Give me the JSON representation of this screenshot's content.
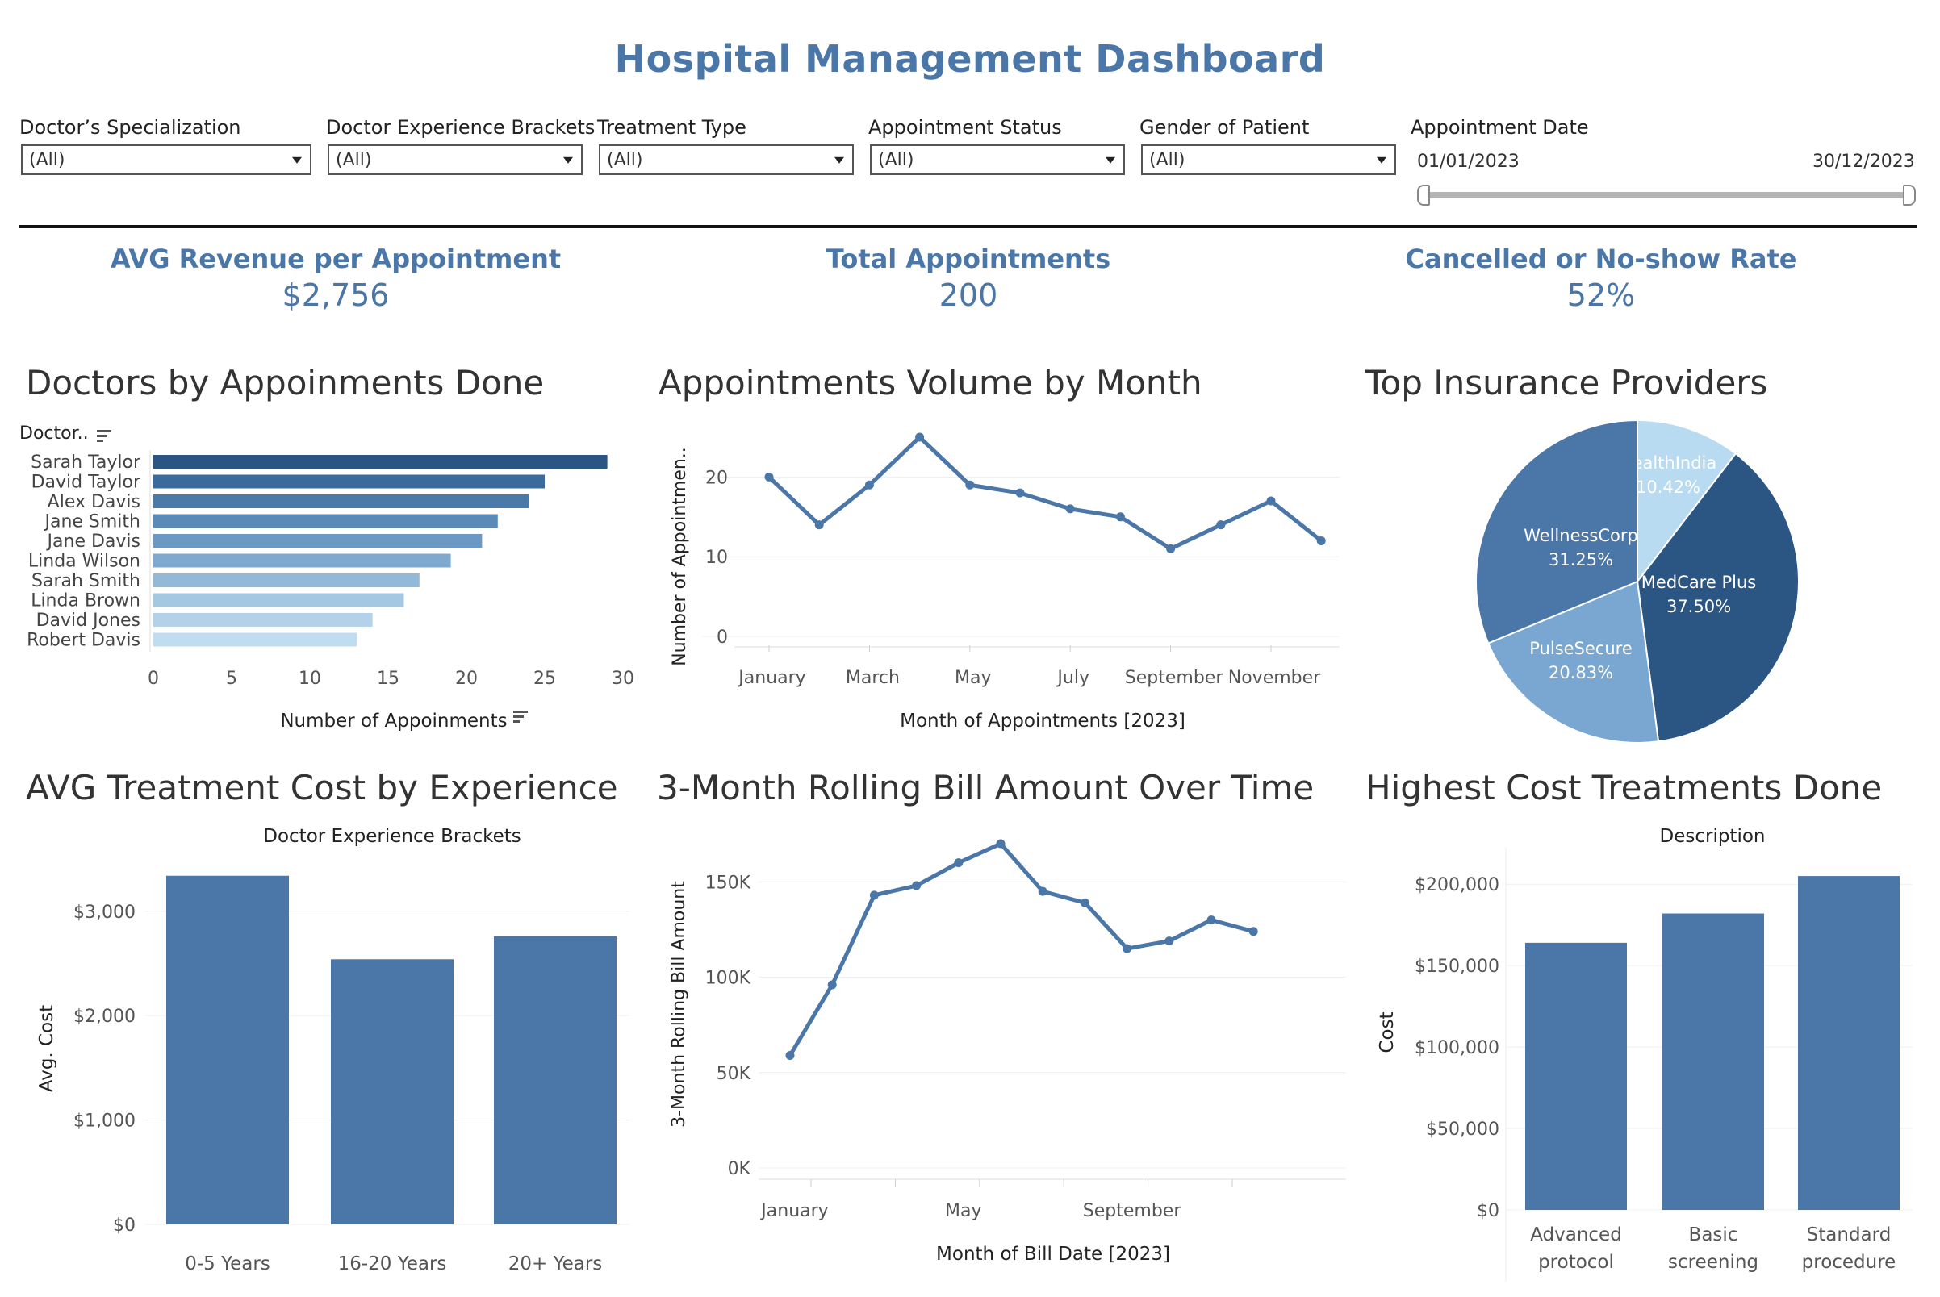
{
  "dashboard": {
    "title": "Hospital Management Dashboard",
    "accent_color": "#4a76a8",
    "filters": [
      {
        "label": "Doctor’s Specialization",
        "value": "(All)"
      },
      {
        "label": "Doctor Experience Brackets",
        "value": "(All)"
      },
      {
        "label": "Treatment Type",
        "value": "(All)"
      },
      {
        "label": "Appointment Status",
        "value": "(All)"
      },
      {
        "label": "Gender of Patient",
        "value": "(All)"
      }
    ],
    "date_filter": {
      "label": "Appointment Date",
      "start": "01/01/2023",
      "end": "30/12/2023"
    },
    "kpis": [
      {
        "label": "AVG Revenue per Appointment",
        "value": "$2,756"
      },
      {
        "label": "Total Appointments",
        "value": "200"
      },
      {
        "label": "Cancelled or No-show Rate",
        "value": "52%"
      }
    ],
    "chart_titles": {
      "doctors": "Doctors by Appoinments Done",
      "volume": "Appointments Volume by Month",
      "insurance": "Top Insurance Providers",
      "experience": "AVG Treatment Cost by Experience",
      "rolling": "3-Month Rolling Bill Amount Over Time",
      "treatments": "Highest Cost Treatments Done"
    },
    "sort_icon": "sort-icon",
    "dropdown_icon": "chevron-down-icon"
  },
  "chart_data": [
    {
      "id": "doctors",
      "type": "bar",
      "orientation": "horizontal",
      "row_header": "Doctor..",
      "xlabel": "Number of Appoinments",
      "xlim": [
        0,
        30
      ],
      "xticks": [
        0,
        5,
        10,
        15,
        20,
        25,
        30
      ],
      "categories": [
        "Sarah Taylor",
        "David Taylor",
        "Alex Davis",
        "Jane Smith",
        "Jane Davis",
        "Linda Wilson",
        "Sarah Smith",
        "Linda Brown",
        "David Jones",
        "Robert Davis"
      ],
      "values": [
        29,
        25,
        24,
        22,
        21,
        19,
        17,
        16,
        14,
        13
      ],
      "colors": [
        "#2b5683",
        "#3b6b9c",
        "#4a7aaa",
        "#5a8ab8",
        "#6b99c4",
        "#7fa9cf",
        "#93b9d9",
        "#a4c7e2",
        "#b3d2ea",
        "#bfdcf1"
      ]
    },
    {
      "id": "volume",
      "type": "line",
      "xlabel": "Month of Appointments [2023]",
      "ylabel": "Number of Appointmen..",
      "ylim": [
        0,
        25
      ],
      "yticks": [
        0,
        10,
        20
      ],
      "x": [
        "January",
        "February",
        "March",
        "April",
        "May",
        "June",
        "July",
        "August",
        "September",
        "October",
        "November",
        "December"
      ],
      "x_tick_labels": [
        "January",
        "March",
        "May",
        "July",
        "September",
        "November"
      ],
      "values": [
        20,
        14,
        19,
        25,
        19,
        18,
        16,
        15,
        11,
        14,
        17,
        12
      ],
      "color": "#4a76a8"
    },
    {
      "id": "insurance",
      "type": "pie",
      "labels": [
        "HealthIndia",
        "MedCare Plus",
        "PulseSecure",
        "WellnessCorp"
      ],
      "values": [
        10.42,
        37.5,
        20.83,
        31.25
      ],
      "value_labels": [
        "10.42%",
        "37.50%",
        "20.83%",
        "31.25%"
      ],
      "colors": [
        "#b9dbf1",
        "#2b5683",
        "#7aa7d1",
        "#4a76a8"
      ]
    },
    {
      "id": "experience",
      "type": "bar",
      "title": "Doctor Experience Brackets",
      "ylabel": "Avg. Cost",
      "ylim": [
        0,
        3400
      ],
      "yticks": [
        0,
        1000,
        2000,
        3000
      ],
      "ytick_labels": [
        "$0",
        "$1,000",
        "$2,000",
        "$3,000"
      ],
      "categories": [
        "0-5 Years",
        "16-20 Years",
        "20+ Years"
      ],
      "values": [
        3340,
        2540,
        2760
      ],
      "color": "#4a76a8"
    },
    {
      "id": "rolling",
      "type": "line",
      "xlabel": "Month of Bill Date [2023]",
      "ylabel": "3-Month Rolling Bill Amount",
      "ylim": [
        0,
        170000
      ],
      "yticks": [
        0,
        50000,
        100000,
        150000
      ],
      "ytick_labels": [
        "0K",
        "50K",
        "100K",
        "150K"
      ],
      "x": [
        "January",
        "February",
        "March",
        "April",
        "May",
        "June",
        "July",
        "August",
        "September",
        "October",
        "November",
        "December"
      ],
      "x_tick_labels": [
        "January",
        "May",
        "September"
      ],
      "values": [
        59000,
        96000,
        143000,
        148000,
        160000,
        170000,
        145000,
        139000,
        115000,
        119000,
        130000,
        124000
      ],
      "color": "#4a76a8"
    },
    {
      "id": "treatments",
      "type": "bar",
      "title": "Description",
      "ylabel": "Cost",
      "ylim": [
        0,
        210000
      ],
      "yticks": [
        0,
        50000,
        100000,
        150000,
        200000
      ],
      "ytick_labels": [
        "$0",
        "$50,000",
        "$100,000",
        "$150,000",
        "$200,000"
      ],
      "categories": [
        [
          "Advanced",
          "protocol"
        ],
        [
          "Basic",
          "screening"
        ],
        [
          "Standard",
          "procedure"
        ]
      ],
      "values": [
        164000,
        182000,
        205000
      ],
      "color": "#4a76a8"
    }
  ]
}
